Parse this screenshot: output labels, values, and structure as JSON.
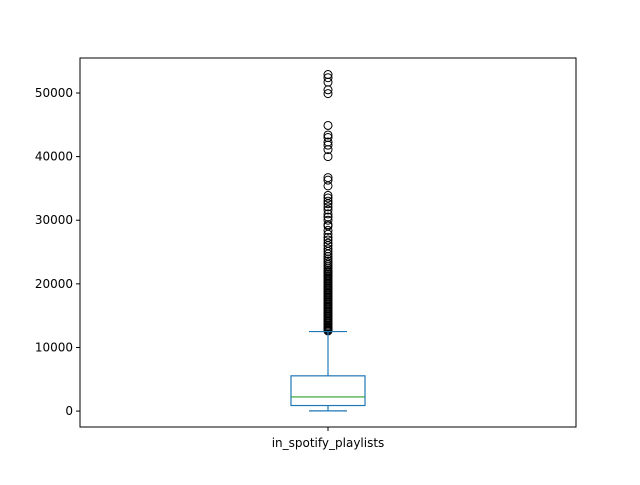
{
  "chart_data": {
    "type": "box",
    "title": "",
    "xlabel": "",
    "ylabel": "",
    "categories": [
      "in_spotify_playlists"
    ],
    "ylim": [
      -2500,
      55500
    ],
    "yticks": [
      0,
      10000,
      20000,
      30000,
      40000,
      50000
    ],
    "ytick_labels": [
      "0",
      "10000",
      "20000",
      "30000",
      "40000",
      "50000"
    ],
    "grid": false,
    "legend": "none",
    "box": {
      "whisker_low": 31,
      "q1": 875,
      "median": 2224,
      "q3": 5542,
      "whisker_high": 12500
    },
    "outliers": [
      12600,
      12750,
      12900,
      13050,
      13200,
      13300,
      13500,
      13700,
      13900,
      14100,
      14300,
      14500,
      14700,
      14900,
      15100,
      15300,
      15500,
      15700,
      15900,
      16100,
      16300,
      16500,
      16700,
      16900,
      17100,
      17300,
      17500,
      17700,
      17900,
      18100,
      18300,
      18500,
      18700,
      18900,
      19100,
      19300,
      19500,
      19700,
      19900,
      20100,
      20300,
      20500,
      20700,
      20900,
      21100,
      21300,
      21500,
      21700,
      21900,
      22100,
      22400,
      22700,
      23000,
      23300,
      23600,
      23900,
      24300,
      24700,
      25100,
      25500,
      26000,
      26400,
      26900,
      27300,
      27800,
      28400,
      29100,
      29300,
      30000,
      30500,
      31000,
      31600,
      32100,
      32600,
      33000,
      33500,
      33900,
      35400,
      36300,
      36700,
      40000,
      41100,
      41800,
      42300,
      43000,
      43400,
      44900,
      49900,
      50500,
      51700,
      52400,
      52900
    ],
    "colors": {
      "box": "#1f77b4",
      "median": "#2ca02c",
      "outlier": "#000000",
      "axes": "#000000"
    }
  }
}
